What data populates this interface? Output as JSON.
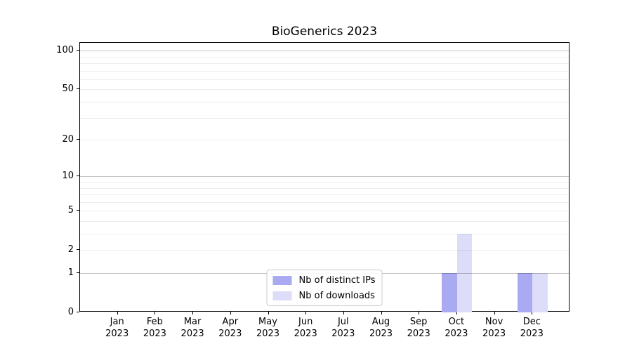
{
  "chart_data": {
    "type": "bar",
    "title": "BioGenerics 2023",
    "categories": [
      "Jan 2023",
      "Feb 2023",
      "Mar 2023",
      "Apr 2023",
      "May 2023",
      "Jun 2023",
      "Jul 2023",
      "Aug 2023",
      "Sep 2023",
      "Oct 2023",
      "Nov 2023",
      "Dec 2023"
    ],
    "series": [
      {
        "name": "Nb of distinct IPs",
        "color": "#aaaaf2",
        "values": [
          0,
          0,
          0,
          0,
          0,
          0,
          0,
          0,
          0,
          1,
          0,
          1
        ]
      },
      {
        "name": "Nb of downloads",
        "color": "#ddddf9",
        "values": [
          0,
          0,
          0,
          0,
          0,
          0,
          0,
          0,
          0,
          3,
          0,
          1
        ]
      }
    ],
    "xlabel": "",
    "ylabel": "",
    "yscale": "log1p",
    "ylim": [
      0,
      112
    ],
    "yticks": [
      0,
      1,
      2,
      5,
      10,
      20,
      50,
      100
    ],
    "grid": {
      "major_levels": [
        1,
        10,
        100
      ],
      "minor_levels": [
        2,
        3,
        4,
        5,
        6,
        7,
        8,
        9,
        20,
        30,
        40,
        50,
        60,
        70,
        80,
        90
      ],
      "major_color": "rgba(0,0,0,0.24)",
      "minor_color": "rgba(0,0,0,0.07)"
    },
    "legend_position": "lower center",
    "bar_group": "side-by-side"
  }
}
